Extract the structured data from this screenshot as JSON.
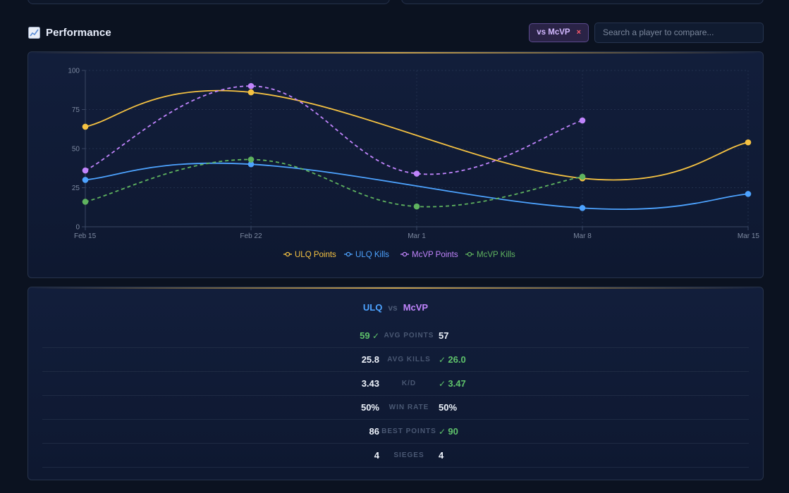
{
  "section": {
    "title": "Performance",
    "compare_chip": "vs McVP",
    "chip_close": "×",
    "search_placeholder": "Search a player to compare..."
  },
  "colors": {
    "ulq_points": "#f5c242",
    "ulq_kills": "#4da3ff",
    "mcvp_points": "#c084fc",
    "mcvp_kills": "#5fb35f",
    "win": "#5fc36b",
    "accent_gold": "#c9a24d"
  },
  "chart_data": {
    "type": "line",
    "x": [
      "Feb 15",
      "Feb 22",
      "Mar 1",
      "Mar 8",
      "Mar 15"
    ],
    "ylim": [
      0,
      100
    ],
    "yticks": [
      0,
      25,
      50,
      75,
      100
    ],
    "grid": true,
    "legend_position": "bottom-center",
    "series": [
      {
        "name": "ULQ Points",
        "values": [
          64,
          86,
          null,
          31,
          54
        ],
        "color": "#f5c242",
        "dashed": false
      },
      {
        "name": "ULQ Kills",
        "values": [
          30,
          40,
          null,
          12,
          21
        ],
        "color": "#4da3ff",
        "dashed": false
      },
      {
        "name": "McVP Points",
        "values": [
          36,
          90,
          34,
          68,
          null
        ],
        "color": "#c084fc",
        "dashed": true
      },
      {
        "name": "McVP Kills",
        "values": [
          16,
          43,
          13,
          32,
          null
        ],
        "color": "#5fb35f",
        "dashed": true
      }
    ]
  },
  "comparison": {
    "player1": "ULQ",
    "vs": "vs",
    "player2": "McVP",
    "rows": [
      {
        "label": "AVG POINTS",
        "left": "59",
        "right": "57",
        "winner": "left"
      },
      {
        "label": "AVG KILLS",
        "left": "25.8",
        "right": "26.0",
        "winner": "right"
      },
      {
        "label": "K/D",
        "left": "3.43",
        "right": "3.47",
        "winner": "right"
      },
      {
        "label": "WIN RATE",
        "left": "50%",
        "right": "50%",
        "winner": "none"
      },
      {
        "label": "BEST POINTS",
        "left": "86",
        "right": "90",
        "winner": "right"
      },
      {
        "label": "SIEGES",
        "left": "4",
        "right": "4",
        "winner": "none"
      }
    ]
  }
}
